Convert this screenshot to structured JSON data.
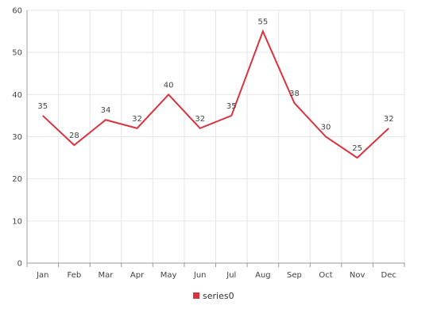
{
  "chart_data": {
    "type": "line",
    "categories": [
      "Jan",
      "Feb",
      "Mar",
      "Apr",
      "May",
      "Jun",
      "Jul",
      "Aug",
      "Sep",
      "Oct",
      "Nov",
      "Dec"
    ],
    "series": [
      {
        "name": "series0",
        "values": [
          35,
          28,
          34,
          32,
          40,
          32,
          35,
          55,
          38,
          30,
          25,
          32
        ],
        "color": "#d9333f"
      }
    ],
    "ylim": [
      0,
      60
    ],
    "yticks": [
      0,
      10,
      20,
      30,
      40,
      50,
      60
    ],
    "grid": true,
    "data_labels": true,
    "legend": "bottom-center",
    "title": "",
    "xlabel": "",
    "ylabel": ""
  }
}
